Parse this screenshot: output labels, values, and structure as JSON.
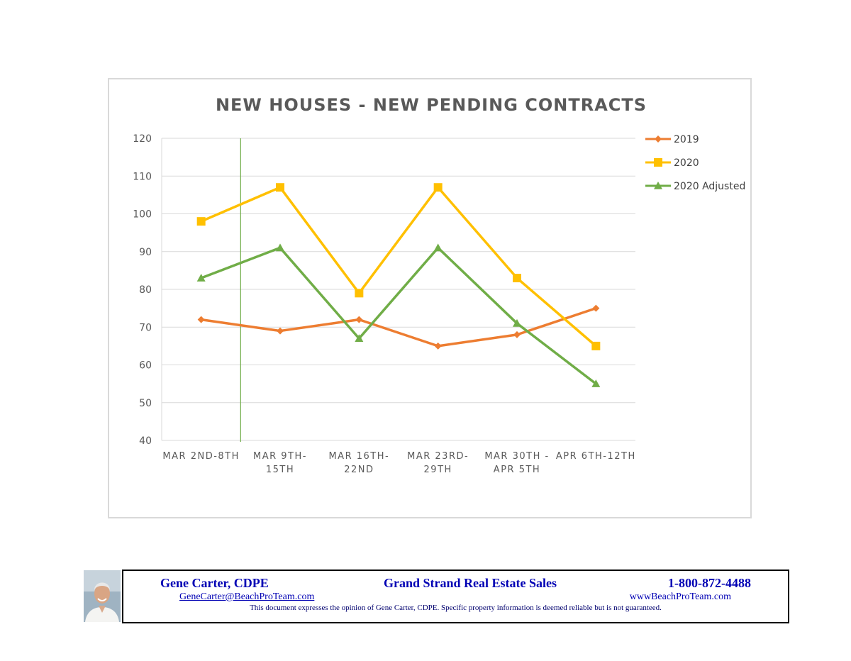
{
  "chart_data": {
    "type": "line",
    "title": "NEW HOUSES - NEW PENDING CONTRACTS",
    "categories": [
      [
        "MAR 2ND-8TH"
      ],
      [
        "MAR 9TH-",
        "15TH"
      ],
      [
        "MAR 16TH-",
        "22ND"
      ],
      [
        "MAR 23RD-",
        "29TH"
      ],
      [
        "MAR 30TH -",
        "APR 5TH"
      ],
      [
        "APR 6TH-12TH"
      ]
    ],
    "yticks": [
      "40",
      "50",
      "60",
      "70",
      "80",
      "90",
      "100",
      "110",
      "120"
    ],
    "ylim": [
      40,
      120
    ],
    "grid": true,
    "legend_position": "right",
    "vertical_marker_after_category": 1,
    "vertical_marker_color": "#70ad47",
    "series": [
      {
        "name": "2019",
        "color": "#ed7d31",
        "marker": "diamond",
        "values": [
          72,
          69,
          72,
          65,
          68,
          75
        ]
      },
      {
        "name": "2020",
        "color": "#ffc000",
        "marker": "square",
        "values": [
          98,
          107,
          79,
          107,
          83,
          65
        ]
      },
      {
        "name": "2020 Adjusted",
        "color": "#70ad47",
        "marker": "triangle",
        "values": [
          83,
          91,
          67,
          91,
          71,
          55
        ]
      }
    ]
  },
  "footer": {
    "name": "Gene Carter, CDPE",
    "company": "Grand Strand Real Estate Sales",
    "phone": "1-800-872-4488",
    "email": "GeneCarter@BeachProTeam.com",
    "website": "wwwBeachProTeam.com",
    "disclaimer": "This document expresses the opinion of Gene Carter, CDPE.  Specific property information is deemed reliable but is not guaranteed.",
    "text_color": "#0000b4"
  }
}
